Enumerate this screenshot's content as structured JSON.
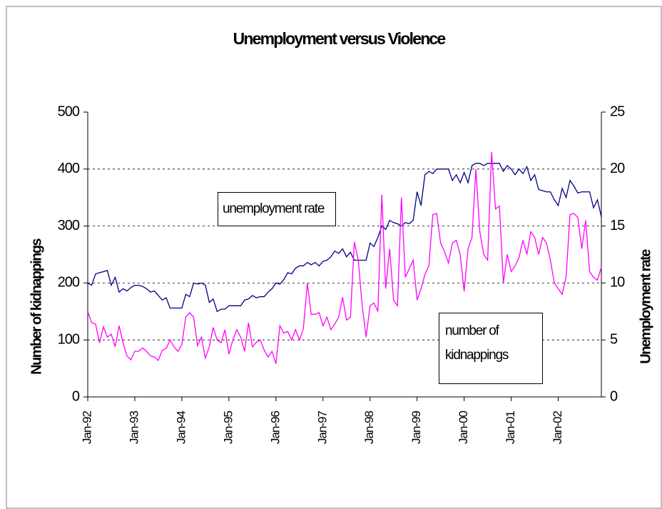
{
  "chart_data": {
    "type": "line",
    "title": "Unemployment versus Violence",
    "y_label": "Number of kidnappings",
    "y2_label": "Unemployment rate",
    "categories": [
      "Jan-92",
      null,
      null,
      null,
      null,
      null,
      null,
      null,
      null,
      null,
      null,
      null,
      "Jan-93",
      null,
      null,
      null,
      null,
      null,
      null,
      null,
      null,
      null,
      null,
      null,
      "Jan-94",
      null,
      null,
      null,
      null,
      null,
      null,
      null,
      null,
      null,
      null,
      null,
      "Jan-95",
      null,
      null,
      null,
      null,
      null,
      null,
      null,
      null,
      null,
      null,
      null,
      "Jan-96",
      null,
      null,
      null,
      null,
      null,
      null,
      null,
      null,
      null,
      null,
      null,
      "Jan-97",
      null,
      null,
      null,
      null,
      null,
      null,
      null,
      null,
      null,
      null,
      null,
      "Jan-98",
      null,
      null,
      null,
      null,
      null,
      null,
      null,
      null,
      null,
      null,
      null,
      "Jan-99",
      null,
      null,
      null,
      null,
      null,
      null,
      null,
      null,
      null,
      null,
      null,
      "Jan-00",
      null,
      null,
      null,
      null,
      null,
      null,
      null,
      null,
      null,
      null,
      null,
      "Jan-01",
      null,
      null,
      null,
      null,
      null,
      null,
      null,
      null,
      null,
      null,
      null,
      "Jan-02",
      null,
      null,
      null,
      null,
      null,
      null,
      null,
      null,
      null,
      null,
      null
    ],
    "series": [
      {
        "name": "unemployment rate",
        "color": "#000080",
        "axis": "y2",
        "values": [
          10.0,
          9.8,
          10.8,
          10.9,
          11.0,
          11.1,
          9.8,
          10.5,
          9.2,
          9.5,
          9.3,
          9.6,
          9.8,
          9.8,
          9.7,
          9.5,
          9.2,
          9.3,
          8.9,
          8.5,
          8.7,
          7.8,
          7.8,
          7.8,
          7.8,
          9.0,
          8.8,
          10.0,
          9.9,
          10.0,
          9.8,
          8.3,
          8.6,
          7.5,
          7.7,
          7.7,
          8.0,
          8.0,
          8.0,
          8.0,
          8.5,
          8.6,
          8.9,
          8.7,
          8.8,
          8.8,
          9.2,
          9.5,
          10.0,
          9.9,
          10.3,
          10.9,
          10.8,
          11.3,
          11.5,
          11.5,
          11.8,
          11.6,
          11.8,
          11.5,
          11.9,
          12.0,
          12.3,
          12.8,
          12.6,
          13.0,
          12.3,
          12.7,
          12.0,
          12.0,
          12.0,
          12.0,
          13.5,
          13.2,
          14.0,
          15.0,
          14.7,
          15.5,
          15.3,
          15.2,
          15.0,
          15.3,
          15.2,
          15.5,
          18.0,
          16.8,
          19.5,
          19.8,
          19.6,
          20.0,
          20.0,
          20.0,
          20.0,
          19.0,
          19.5,
          18.8,
          19.7,
          18.8,
          20.3,
          20.5,
          20.5,
          20.3,
          20.5,
          20.5,
          20.5,
          20.5,
          19.8,
          20.3,
          20.0,
          19.5,
          20.0,
          19.6,
          20.2,
          19.0,
          19.5,
          18.2,
          18.1,
          18.0,
          18.0,
          17.3,
          16.8,
          18.3,
          17.5,
          19.0,
          18.5,
          17.9,
          18.0,
          18.0,
          18.0,
          16.6,
          17.3,
          15.8
        ]
      },
      {
        "name": "number of kidnappings",
        "color": "#ff00ff",
        "axis": "y",
        "values": [
          150,
          130,
          128,
          95,
          123,
          105,
          110,
          88,
          125,
          95,
          72,
          65,
          80,
          80,
          86,
          80,
          72,
          70,
          64,
          82,
          85,
          100,
          88,
          80,
          92,
          140,
          148,
          140,
          90,
          105,
          68,
          88,
          122,
          100,
          95,
          118,
          75,
          100,
          118,
          105,
          80,
          130,
          88,
          96,
          100,
          82,
          70,
          80,
          58,
          125,
          112,
          115,
          100,
          118,
          100,
          120,
          200,
          145,
          145,
          148,
          125,
          140,
          118,
          128,
          140,
          175,
          135,
          140,
          272,
          240,
          160,
          105,
          160,
          165,
          150,
          355,
          190,
          260,
          170,
          160,
          350,
          210,
          225,
          240,
          170,
          190,
          215,
          230,
          320,
          322,
          270,
          255,
          235,
          270,
          275,
          250,
          185,
          260,
          280,
          400,
          290,
          250,
          240,
          430,
          330,
          335,
          200,
          250,
          220,
          230,
          245,
          275,
          250,
          290,
          280,
          250,
          280,
          270,
          240,
          200,
          190,
          180,
          210,
          320,
          322,
          315,
          260,
          310,
          220,
          210,
          205,
          228
        ]
      }
    ],
    "ylim": [
      0,
      500
    ],
    "yticks": [
      0,
      100,
      200,
      300,
      400,
      500
    ],
    "y2lim": [
      0,
      25
    ],
    "y2ticks": [
      0,
      5,
      10,
      15,
      20,
      25
    ],
    "grid": true
  }
}
